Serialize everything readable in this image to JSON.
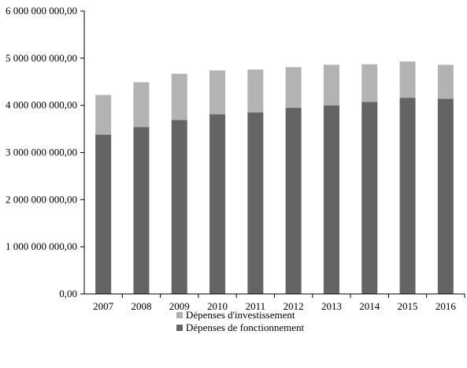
{
  "chart_data": {
    "type": "bar",
    "stacked": true,
    "title": "",
    "xlabel": "",
    "ylabel": "",
    "categories": [
      "2007",
      "2008",
      "2009",
      "2010",
      "2011",
      "2012",
      "2013",
      "2014",
      "2015",
      "2016"
    ],
    "series": [
      {
        "name": "Dépenses de fonctionnement",
        "color": "#646464",
        "values": [
          3380000000,
          3540000000,
          3690000000,
          3810000000,
          3850000000,
          3950000000,
          4000000000,
          4070000000,
          4160000000,
          4140000000
        ]
      },
      {
        "name": "Dépenses d'investissement",
        "color": "#b3b3b3",
        "values": [
          840000000,
          950000000,
          980000000,
          930000000,
          910000000,
          860000000,
          860000000,
          800000000,
          770000000,
          720000000
        ]
      }
    ],
    "ylim": [
      0,
      6000000000
    ],
    "yticks": [
      0,
      1000000000,
      2000000000,
      3000000000,
      4000000000,
      5000000000,
      6000000000
    ],
    "ytick_labels": [
      "0,00",
      "1 000 000 000,00",
      "2 000 000 000,00",
      "3 000 000 000,00",
      "4 000 000 000,00",
      "5 000 000 000,00",
      "6 000 000 000,00"
    ],
    "grid": false,
    "legend": {
      "position": "bottom",
      "entries": [
        "Dépenses d'investissement",
        "Dépenses de fonctionnement"
      ]
    }
  }
}
